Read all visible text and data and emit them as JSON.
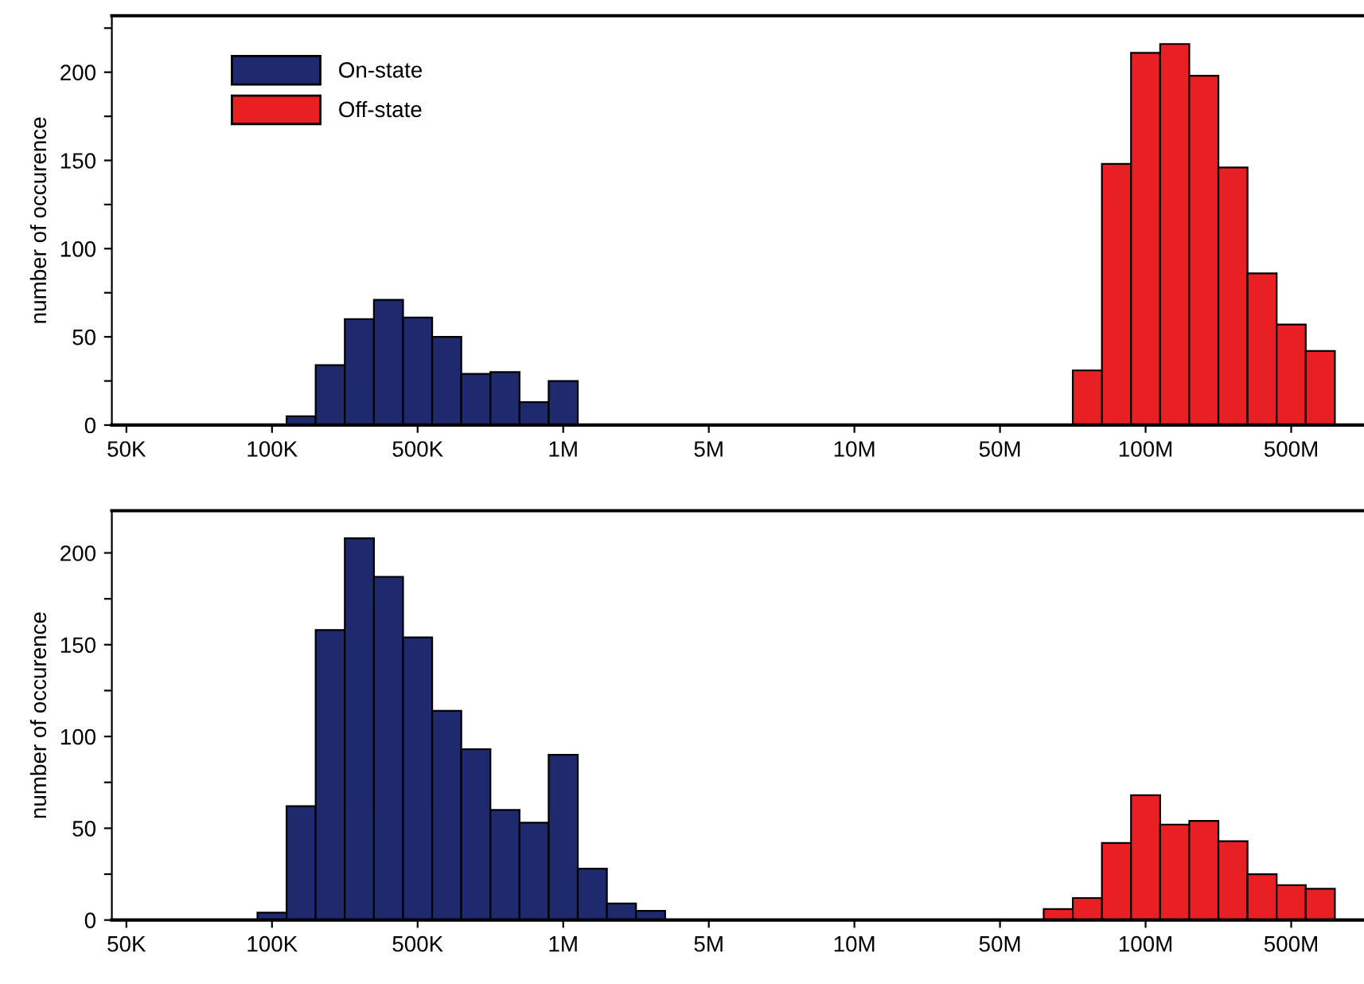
{
  "chart_data": [
    {
      "type": "bar",
      "ylabel": "number of occurence",
      "legend": "top left",
      "grid": false,
      "categories": [
        "50K",
        null,
        null,
        null,
        null,
        "100K",
        null,
        null,
        null,
        null,
        "500K",
        null,
        null,
        null,
        null,
        "1M",
        null,
        null,
        null,
        null,
        "5M",
        null,
        null,
        null,
        null,
        "10M",
        null,
        null,
        null,
        null,
        "50M",
        null,
        null,
        null,
        null,
        "100M",
        null,
        null,
        null,
        null,
        "500M",
        null,
        null
      ],
      "ylim": [
        0,
        232
      ],
      "yticks": [
        0,
        {
          "value": 25,
          "label": null
        },
        50,
        {
          "value": 75,
          "label": null
        },
        100,
        {
          "value": 125,
          "label": null
        },
        150,
        {
          "value": 175,
          "label": null
        },
        200,
        {
          "value": 225,
          "label": null
        }
      ],
      "series": [
        {
          "name": "On-state",
          "color": "#1f2a6e",
          "values": [
            null,
            null,
            null,
            null,
            null,
            null,
            5,
            34,
            60,
            71,
            61,
            50,
            29,
            30,
            13,
            25,
            null,
            null,
            null,
            null,
            null,
            null,
            null,
            null,
            null,
            null,
            null,
            null,
            null,
            null,
            null,
            null,
            null,
            null,
            null,
            null,
            null,
            null,
            null,
            null,
            null,
            null,
            null
          ]
        },
        {
          "name": "Off-state",
          "color": "#e82024",
          "values": [
            null,
            null,
            null,
            null,
            null,
            null,
            null,
            null,
            null,
            null,
            null,
            null,
            null,
            null,
            null,
            null,
            null,
            null,
            null,
            null,
            null,
            null,
            null,
            null,
            null,
            null,
            null,
            null,
            null,
            null,
            null,
            null,
            null,
            31,
            148,
            211,
            216,
            198,
            146,
            86,
            57,
            42,
            null
          ]
        }
      ]
    },
    {
      "type": "bar",
      "ylabel": "number of occurence",
      "grid": false,
      "categories": [
        "50K",
        null,
        null,
        null,
        null,
        "100K",
        null,
        null,
        null,
        null,
        "500K",
        null,
        null,
        null,
        null,
        "1M",
        null,
        null,
        null,
        null,
        "5M",
        null,
        null,
        null,
        null,
        "10M",
        null,
        null,
        null,
        null,
        "50M",
        null,
        null,
        null,
        null,
        "100M",
        null,
        null,
        null,
        null,
        "500M",
        null,
        null
      ],
      "ylim": [
        0,
        223
      ],
      "yticks": [
        0,
        {
          "value": 25,
          "label": null
        },
        50,
        {
          "value": 75,
          "label": null
        },
        100,
        {
          "value": 125,
          "label": null
        },
        150,
        {
          "value": 175,
          "label": null
        },
        200
      ],
      "series": [
        {
          "color": "#1f2a6e",
          "values": [
            null,
            null,
            null,
            null,
            null,
            4,
            62,
            158,
            208,
            187,
            154,
            114,
            93,
            60,
            53,
            90,
            28,
            9,
            5,
            null,
            null,
            null,
            null,
            null,
            null,
            null,
            null,
            null,
            null,
            null,
            null,
            null,
            null,
            null,
            null,
            null,
            null,
            null,
            null,
            null,
            null,
            null,
            null
          ]
        },
        {
          "color": "#e82024",
          "values": [
            null,
            null,
            null,
            null,
            null,
            null,
            null,
            null,
            null,
            null,
            null,
            null,
            null,
            null,
            null,
            null,
            null,
            null,
            null,
            null,
            null,
            null,
            null,
            null,
            null,
            null,
            null,
            null,
            null,
            null,
            null,
            null,
            6,
            12,
            42,
            68,
            52,
            54,
            43,
            25,
            19,
            17,
            null
          ]
        }
      ]
    }
  ]
}
